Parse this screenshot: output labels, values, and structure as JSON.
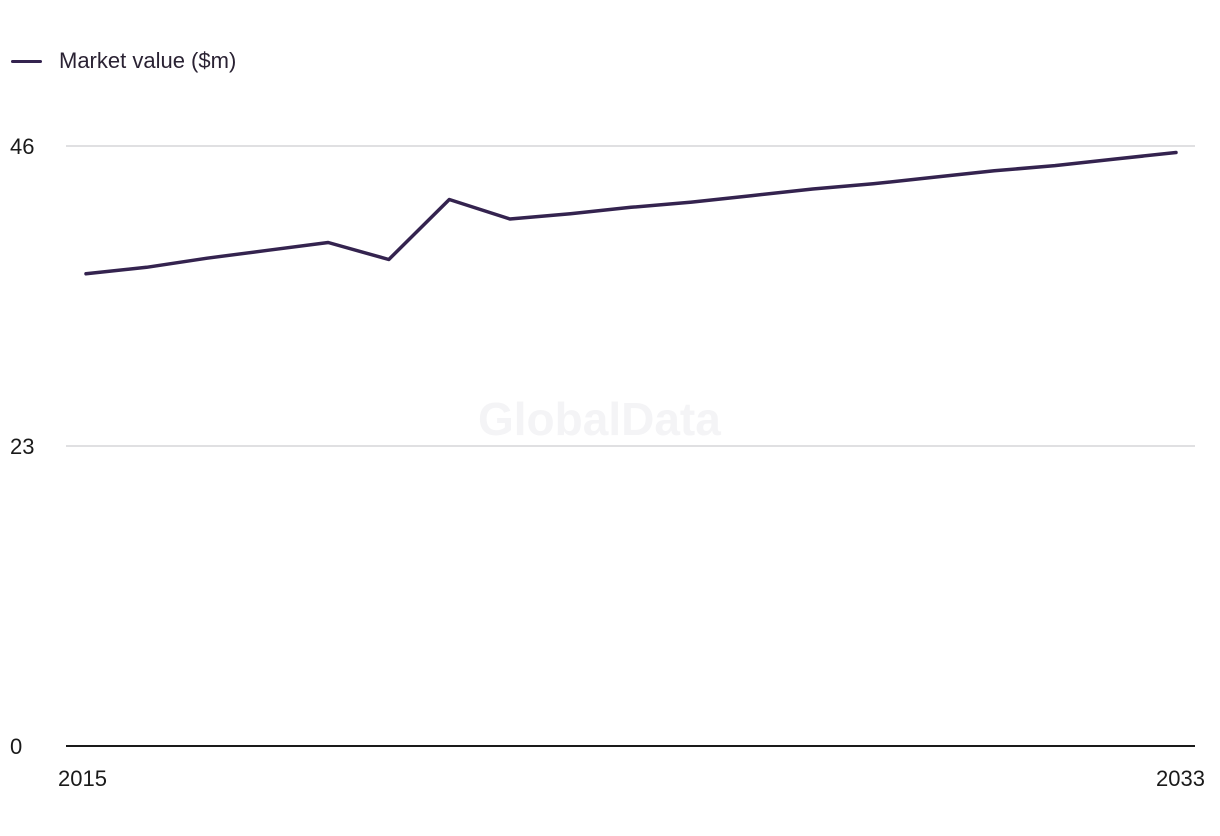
{
  "chart_data": {
    "type": "line",
    "x": [
      2015,
      2016,
      2017,
      2018,
      2019,
      2020,
      2021,
      2022,
      2023,
      2024,
      2025,
      2026,
      2027,
      2028,
      2029,
      2030,
      2031,
      2032,
      2033
    ],
    "series": [
      {
        "name": "Market value ($m)",
        "values": [
          36.2,
          36.7,
          37.4,
          38.0,
          38.6,
          37.3,
          41.9,
          40.4,
          40.8,
          41.3,
          41.7,
          42.2,
          42.7,
          43.1,
          43.6,
          44.1,
          44.5,
          45.0,
          45.5
        ]
      }
    ],
    "ylim": [
      0,
      46
    ],
    "yticks": [
      {
        "value": 0,
        "label": "0"
      },
      {
        "value": 23,
        "label": "23"
      },
      {
        "value": 46,
        "label": "46"
      }
    ],
    "xticks": [
      {
        "value": 2015,
        "label": "2015"
      },
      {
        "value": 2033,
        "label": "2033"
      }
    ],
    "grid": true,
    "legend_position": "top-left",
    "watermark": "GlobalData"
  },
  "colors": {
    "series_line": "#34234f",
    "gridline": "#d6d6d9",
    "axis_line": "#1a1a1a",
    "tick_text": "#1a1a1a"
  }
}
